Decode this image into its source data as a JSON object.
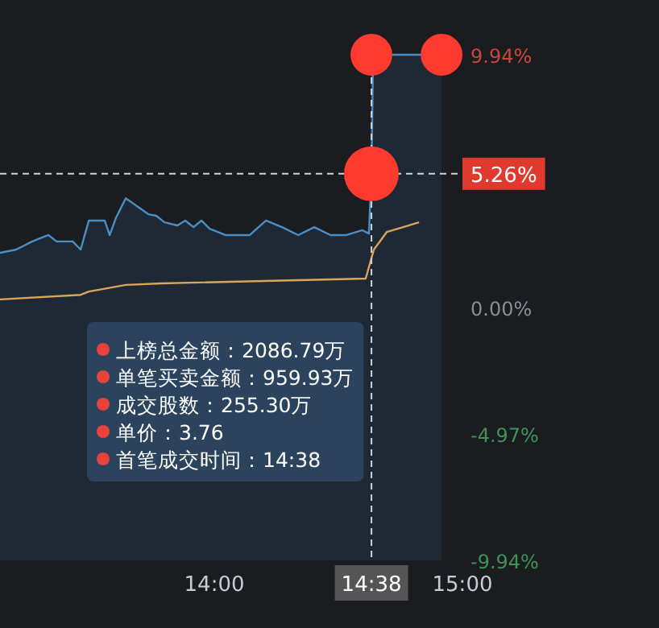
{
  "chart_data": {
    "type": "line",
    "xlim": [
      13.136,
      15
    ],
    "xticks": [
      {
        "value": 14,
        "label": "14:00"
      },
      {
        "value": 14.633333,
        "label": "14:38"
      },
      {
        "value": 15,
        "label": "15:00"
      }
    ],
    "ylim": [
      -9.94,
      9.94
    ],
    "yticks": [
      {
        "value": 9.94,
        "label": "9.94%"
      },
      {
        "value": 0,
        "label": "0.00%"
      },
      {
        "value": -4.97,
        "label": "-4.97%"
      },
      {
        "value": -9.94,
        "label": "-9.94%"
      }
    ],
    "series": [
      {
        "type": "area",
        "color": "#4a8fc4",
        "x": [
          13.136,
          13.201,
          13.266,
          13.331,
          13.364,
          13.429,
          13.461,
          13.494,
          13.558,
          13.578,
          13.604,
          13.643,
          13.688,
          13.734,
          13.766,
          13.799,
          13.851,
          13.883,
          13.916,
          13.948,
          13.981,
          14.045,
          14.143,
          14.208,
          14.273,
          14.338,
          14.403,
          14.468,
          14.532,
          14.597,
          14.623,
          14.633,
          14.64,
          14.916
        ],
        "values": [
          2.15,
          2.28,
          2.6,
          2.85,
          2.6,
          2.6,
          2.28,
          3.42,
          3.42,
          2.85,
          3.54,
          4.3,
          3.99,
          3.67,
          3.61,
          3.35,
          3.23,
          3.42,
          3.16,
          3.42,
          3.1,
          2.85,
          2.85,
          3.42,
          3.16,
          2.85,
          3.16,
          2.85,
          2.85,
          3.04,
          2.91,
          5.13,
          9.94,
          9.94
        ]
      },
      {
        "color": "#d9a55a",
        "x": [
          13.136,
          13.461,
          13.494,
          13.643,
          13.786,
          14.61,
          14.643,
          14.695,
          14.825
        ],
        "values": [
          0.32,
          0.5,
          0.63,
          0.89,
          0.95,
          1.14,
          2.28,
          2.97,
          3.35
        ]
      },
      {
        "type": "bubble",
        "color": "#ff3b30",
        "x": [
          14.633,
          14.916,
          14.633
        ],
        "values": [
          9.94,
          9.94,
          5.26
        ],
        "sizes": [
          0.58,
          0.58,
          1
        ]
      }
    ],
    "ref_lines": [
      {
        "axis": "y",
        "value": 5.26,
        "label": "5.26%",
        "line_style": "dashed"
      },
      {
        "axis": "x",
        "value": 14.633333,
        "line_style": "dashed"
      }
    ],
    "annotations": [
      "上榜总金额：2086.79万",
      "单笔买卖金额：959.93万",
      "成交股数：255.30万",
      "单价：3.76",
      "首笔成交时间：14:38"
    ]
  }
}
